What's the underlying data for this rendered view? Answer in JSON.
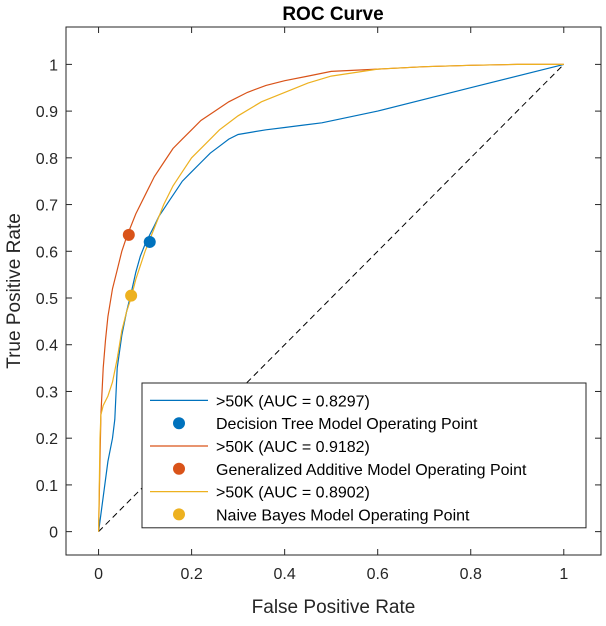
{
  "chart_data": {
    "type": "line",
    "title": "ROC Curve",
    "xlabel": "False Positive Rate",
    "ylabel": "True Positive Rate",
    "xlim": [
      -0.07,
      1.08
    ],
    "ylim": [
      -0.05,
      1.08
    ],
    "xticks": [
      0,
      0.2,
      0.4,
      0.6,
      0.8,
      1
    ],
    "yticks": [
      0,
      0.1,
      0.2,
      0.3,
      0.4,
      0.5,
      0.6,
      0.7,
      0.8,
      0.9,
      1
    ],
    "xtick_labels": [
      "0",
      "0.2",
      "0.4",
      "0.6",
      "0.8",
      "1"
    ],
    "ytick_labels": [
      "0",
      "0.1",
      "0.2",
      "0.3",
      "0.4",
      "0.5",
      "0.6",
      "0.7",
      "0.8",
      "0.9",
      "1"
    ],
    "grid": false,
    "legend_position": "bottom-right",
    "diagonal": {
      "x": [
        0,
        1
      ],
      "y": [
        0,
        1
      ],
      "style": "dashed",
      "color": "#000000"
    },
    "series": [
      {
        "name": ">50K (AUC = 0.8297)",
        "color": "#0072BD",
        "x": [
          0,
          0.02,
          0.03,
          0.035,
          0.04,
          0.05,
          0.06,
          0.07,
          0.08,
          0.09,
          0.1,
          0.11,
          0.12,
          0.13,
          0.14,
          0.15,
          0.16,
          0.17,
          0.18,
          0.2,
          0.22,
          0.24,
          0.26,
          0.28,
          0.3,
          0.33,
          0.36,
          0.4,
          0.44,
          0.48,
          0.6,
          0.8,
          1
        ],
        "y": [
          0,
          0.15,
          0.2,
          0.24,
          0.35,
          0.42,
          0.47,
          0.51,
          0.555,
          0.59,
          0.615,
          0.635,
          0.655,
          0.675,
          0.69,
          0.705,
          0.72,
          0.735,
          0.75,
          0.77,
          0.79,
          0.81,
          0.825,
          0.84,
          0.85,
          0.855,
          0.86,
          0.865,
          0.87,
          0.875,
          0.9,
          0.95,
          1
        ]
      },
      {
        "name": "Decision Tree Model Operating Point",
        "color": "#0072BD",
        "marker": "circle",
        "x": [
          0.11
        ],
        "y": [
          0.62
        ]
      },
      {
        "name": ">50K (AUC = 0.9182)",
        "color": "#D95319",
        "x": [
          0,
          0.005,
          0.01,
          0.015,
          0.02,
          0.03,
          0.04,
          0.05,
          0.06,
          0.08,
          0.1,
          0.12,
          0.14,
          0.16,
          0.18,
          0.2,
          0.22,
          0.25,
          0.28,
          0.32,
          0.36,
          0.4,
          0.45,
          0.5,
          0.6,
          0.7,
          0.8,
          0.9,
          1
        ],
        "y": [
          0,
          0.25,
          0.35,
          0.41,
          0.46,
          0.52,
          0.56,
          0.6,
          0.63,
          0.68,
          0.72,
          0.76,
          0.79,
          0.82,
          0.84,
          0.86,
          0.88,
          0.9,
          0.92,
          0.94,
          0.955,
          0.965,
          0.975,
          0.985,
          0.99,
          0.995,
          0.998,
          1,
          1
        ]
      },
      {
        "name": "Generalized Additive Model Operating Point",
        "color": "#D95319",
        "marker": "circle",
        "x": [
          0.065
        ],
        "y": [
          0.635
        ]
      },
      {
        "name": ">50K (AUC = 0.8902)",
        "color": "#EDB120",
        "x": [
          0,
          0.003,
          0.005,
          0.01,
          0.02,
          0.03,
          0.04,
          0.05,
          0.06,
          0.07,
          0.08,
          0.1,
          0.12,
          0.14,
          0.16,
          0.18,
          0.2,
          0.23,
          0.26,
          0.3,
          0.35,
          0.4,
          0.45,
          0.5,
          0.6,
          0.7,
          0.8,
          0.9,
          1
        ],
        "y": [
          0,
          0.2,
          0.25,
          0.27,
          0.29,
          0.32,
          0.37,
          0.43,
          0.47,
          0.5,
          0.54,
          0.6,
          0.65,
          0.7,
          0.74,
          0.77,
          0.8,
          0.83,
          0.86,
          0.89,
          0.92,
          0.94,
          0.96,
          0.975,
          0.99,
          0.995,
          0.998,
          1,
          1
        ]
      },
      {
        "name": "Naive Bayes Model Operating Point",
        "color": "#EDB120",
        "marker": "circle",
        "x": [
          0.07
        ],
        "y": [
          0.505
        ]
      }
    ]
  }
}
